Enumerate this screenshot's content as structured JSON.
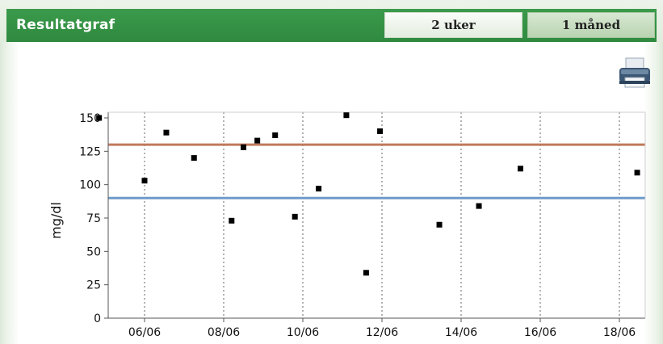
{
  "header": {
    "title": "Resultatgraf",
    "range_buttons": [
      {
        "label": "2 uker",
        "selected": false
      },
      {
        "label": "1 måned",
        "selected": true
      }
    ]
  },
  "toolbar": {
    "print_icon": "printer-icon"
  },
  "colors": {
    "header_green": "#2f8a3f",
    "upper_limit": "#c07a5c",
    "lower_limit": "#6f9bc9",
    "points": "#000000"
  },
  "chart_data": {
    "type": "scatter",
    "title": "",
    "xlabel": "",
    "ylabel": "mg/dl",
    "ylim": [
      0,
      150
    ],
    "yticks": [
      0,
      25,
      50,
      75,
      100,
      125,
      150
    ],
    "xticks": [
      "06/06",
      "08/06",
      "10/06",
      "12/06",
      "14/06",
      "16/06",
      "18/06"
    ],
    "xlim_days": [
      4.5,
      18.3
    ],
    "points": [
      {
        "x": 4.85,
        "y": 150
      },
      {
        "x": 6.0,
        "y": 103
      },
      {
        "x": 6.55,
        "y": 139
      },
      {
        "x": 7.25,
        "y": 120
      },
      {
        "x": 8.2,
        "y": 73
      },
      {
        "x": 8.5,
        "y": 128
      },
      {
        "x": 8.85,
        "y": 133
      },
      {
        "x": 9.3,
        "y": 137
      },
      {
        "x": 9.8,
        "y": 76
      },
      {
        "x": 10.4,
        "y": 97
      },
      {
        "x": 11.1,
        "y": 152
      },
      {
        "x": 11.6,
        "y": 34
      },
      {
        "x": 11.95,
        "y": 140
      },
      {
        "x": 13.45,
        "y": 70
      },
      {
        "x": 14.45,
        "y": 84
      },
      {
        "x": 15.5,
        "y": 112
      },
      {
        "x": 18.45,
        "y": 109
      }
    ],
    "reference_lines": [
      {
        "y": 130,
        "color": "#c07a5c"
      },
      {
        "y": 90,
        "color": "#6f9bc9"
      }
    ],
    "grid": {
      "vertical": true,
      "horizontal": false,
      "style": "dotted"
    }
  }
}
